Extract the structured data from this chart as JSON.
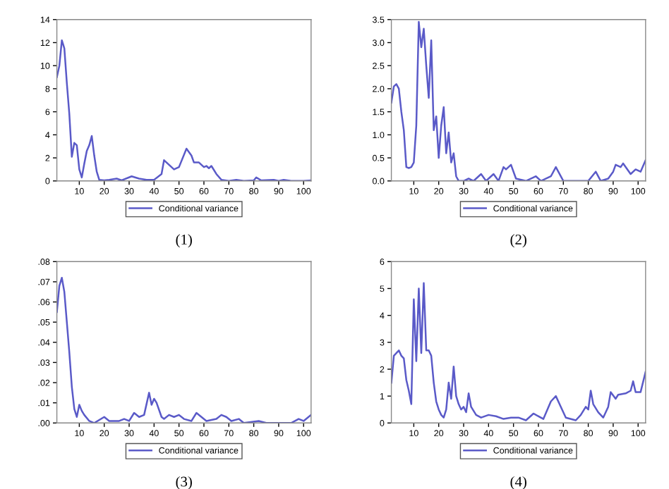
{
  "chart_data": [
    {
      "type": "line",
      "title": "(1)",
      "xlim": [
        1,
        103
      ],
      "xticks": [
        10,
        20,
        30,
        40,
        50,
        60,
        70,
        80,
        90,
        100
      ],
      "ylim": [
        0,
        14
      ],
      "yticks": [
        0,
        2,
        4,
        6,
        8,
        10,
        12,
        14
      ],
      "legend": "bottom",
      "grid": false,
      "series": [
        {
          "name": "Conditional variance",
          "color": "#5a5ac8",
          "x": [
            1,
            2,
            3,
            4,
            5,
            6,
            7,
            8,
            9,
            10,
            11,
            12,
            13,
            14,
            15,
            16,
            17,
            18,
            20,
            22,
            25,
            27,
            31,
            34,
            37,
            40,
            43,
            44,
            46,
            48,
            50,
            53,
            55,
            56,
            58,
            60,
            61,
            62,
            63,
            65,
            67,
            70,
            73,
            76,
            80,
            81,
            83,
            88,
            90,
            92,
            95,
            100,
            103
          ],
          "values": [
            9,
            10,
            12.2,
            11.5,
            8.5,
            5.8,
            2.1,
            3.3,
            3.1,
            1.0,
            0.3,
            1.5,
            2.6,
            3.1,
            3.9,
            2.2,
            0.8,
            0.1,
            0.05,
            0.1,
            0.2,
            0.05,
            0.4,
            0.2,
            0.1,
            0.1,
            0.6,
            1.8,
            1.4,
            1.0,
            1.2,
            2.8,
            2.2,
            1.6,
            1.6,
            1.2,
            1.3,
            1.1,
            1.3,
            0.6,
            0.1,
            0.0,
            0.1,
            0.0,
            0.05,
            0.3,
            0.05,
            0.1,
            0.0,
            0.1,
            0.0,
            0.0,
            0.05
          ]
        }
      ]
    },
    {
      "type": "line",
      "title": "(2)",
      "xlim": [
        1,
        103
      ],
      "xticks": [
        10,
        20,
        30,
        40,
        50,
        60,
        70,
        80,
        90,
        100
      ],
      "ylim": [
        0,
        3.5
      ],
      "yticks": [
        {
          "value": 0,
          "label": "0.0"
        },
        0.5,
        {
          "value": 1,
          "label": "1.0"
        },
        1.5,
        {
          "value": 2,
          "label": "2.0"
        },
        2.5,
        {
          "value": 3,
          "label": "3.0"
        },
        3.5
      ],
      "legend": "bottom",
      "grid": false,
      "series": [
        {
          "name": "Conditional variance",
          "color": "#5a5ac8",
          "x": [
            1,
            2,
            3,
            4,
            5,
            6,
            7,
            8,
            9,
            10,
            11,
            12,
            13,
            14,
            15,
            16,
            17,
            18,
            19,
            20,
            21,
            22,
            23,
            24,
            25,
            26,
            27,
            28,
            30,
            32,
            34,
            37,
            39,
            42,
            44,
            46,
            47,
            49,
            51,
            55,
            59,
            61,
            65,
            67,
            70,
            75,
            80,
            83,
            85,
            88,
            90,
            91,
            93,
            94,
            97,
            99,
            101,
            103
          ],
          "values": [
            1.7,
            2.05,
            2.1,
            2.0,
            1.5,
            1.1,
            0.3,
            0.28,
            0.3,
            0.4,
            1.2,
            3.45,
            2.9,
            3.3,
            2.5,
            1.8,
            3.05,
            1.1,
            1.4,
            0.5,
            1.2,
            1.6,
            0.6,
            1.05,
            0.4,
            0.6,
            0.1,
            0.0,
            0.0,
            0.05,
            0.0,
            0.15,
            0.0,
            0.15,
            0.0,
            0.3,
            0.25,
            0.35,
            0.05,
            0.0,
            0.1,
            0.0,
            0.1,
            0.3,
            0.0,
            0.0,
            0.0,
            0.2,
            0.0,
            0.05,
            0.2,
            0.35,
            0.3,
            0.38,
            0.15,
            0.25,
            0.2,
            0.45
          ]
        }
      ]
    },
    {
      "type": "line",
      "title": "(3)",
      "xlim": [
        1,
        103
      ],
      "xticks": [
        10,
        20,
        30,
        40,
        50,
        60,
        70,
        80,
        90,
        100
      ],
      "ylim": [
        0,
        0.08
      ],
      "yticks": [
        {
          "value": 0,
          "label": ".00"
        },
        {
          "value": 0.01,
          "label": ".01"
        },
        {
          "value": 0.02,
          "label": ".02"
        },
        {
          "value": 0.03,
          "label": ".03"
        },
        {
          "value": 0.04,
          "label": ".04"
        },
        {
          "value": 0.05,
          "label": ".05"
        },
        {
          "value": 0.06,
          "label": ".06"
        },
        {
          "value": 0.07,
          "label": ".07"
        },
        {
          "value": 0.08,
          "label": ".08"
        }
      ],
      "legend": "bottom",
      "grid": false,
      "series": [
        {
          "name": "Conditional variance",
          "color": "#5a5ac8",
          "x": [
            1,
            2,
            3,
            4,
            5,
            6,
            7,
            8,
            9,
            10,
            11,
            12,
            14,
            16,
            20,
            22,
            26,
            28,
            30,
            32,
            34,
            36,
            38,
            39,
            40,
            41,
            43,
            44,
            46,
            48,
            50,
            52,
            55,
            57,
            59,
            61,
            65,
            67,
            69,
            71,
            74,
            76,
            82,
            85,
            95,
            98,
            100,
            103
          ],
          "values": [
            0.055,
            0.068,
            0.072,
            0.065,
            0.05,
            0.035,
            0.018,
            0.007,
            0.003,
            0.009,
            0.006,
            0.004,
            0.001,
            0.0,
            0.003,
            0.001,
            0.001,
            0.002,
            0.001,
            0.005,
            0.003,
            0.004,
            0.015,
            0.009,
            0.012,
            0.01,
            0.003,
            0.002,
            0.004,
            0.003,
            0.004,
            0.002,
            0.001,
            0.005,
            0.003,
            0.001,
            0.002,
            0.004,
            0.003,
            0.001,
            0.002,
            0.0,
            0.001,
            0.0,
            0.0,
            0.002,
            0.001,
            0.004
          ]
        }
      ]
    },
    {
      "type": "line",
      "title": "(4)",
      "xlim": [
        1,
        103
      ],
      "xticks": [
        10,
        20,
        30,
        40,
        50,
        60,
        70,
        80,
        90,
        100
      ],
      "ylim": [
        0,
        6
      ],
      "yticks": [
        0,
        1,
        2,
        3,
        4,
        5,
        6
      ],
      "legend": "bottom",
      "grid": false,
      "series": [
        {
          "name": "Conditional variance",
          "color": "#5a5ac8",
          "x": [
            1,
            2,
            3,
            4,
            5,
            6,
            7,
            8,
            9,
            10,
            11,
            12,
            13,
            14,
            15,
            16,
            17,
            18,
            19,
            20,
            21,
            22,
            23,
            24,
            25,
            26,
            27,
            28,
            29,
            30,
            31,
            32,
            33,
            35,
            37,
            40,
            43,
            46,
            49,
            52,
            55,
            58,
            62,
            65,
            67,
            69,
            71,
            75,
            77,
            79,
            80,
            81,
            82,
            84,
            86,
            88,
            89,
            91,
            92,
            95,
            97,
            98,
            99,
            101,
            103
          ],
          "values": [
            1.5,
            2.5,
            2.6,
            2.7,
            2.5,
            2.4,
            1.6,
            1.2,
            0.7,
            4.6,
            2.3,
            5.0,
            2.6,
            5.2,
            2.7,
            2.7,
            2.5,
            1.5,
            0.8,
            0.5,
            0.3,
            0.2,
            0.5,
            1.5,
            0.9,
            2.1,
            1.0,
            0.7,
            0.5,
            0.6,
            0.4,
            1.1,
            0.6,
            0.3,
            0.2,
            0.3,
            0.25,
            0.15,
            0.2,
            0.2,
            0.1,
            0.35,
            0.15,
            0.8,
            1.0,
            0.6,
            0.2,
            0.1,
            0.3,
            0.6,
            0.5,
            1.2,
            0.7,
            0.4,
            0.2,
            0.6,
            1.15,
            0.9,
            1.05,
            1.1,
            1.2,
            1.55,
            1.15,
            1.15,
            1.9
          ]
        }
      ]
    }
  ]
}
